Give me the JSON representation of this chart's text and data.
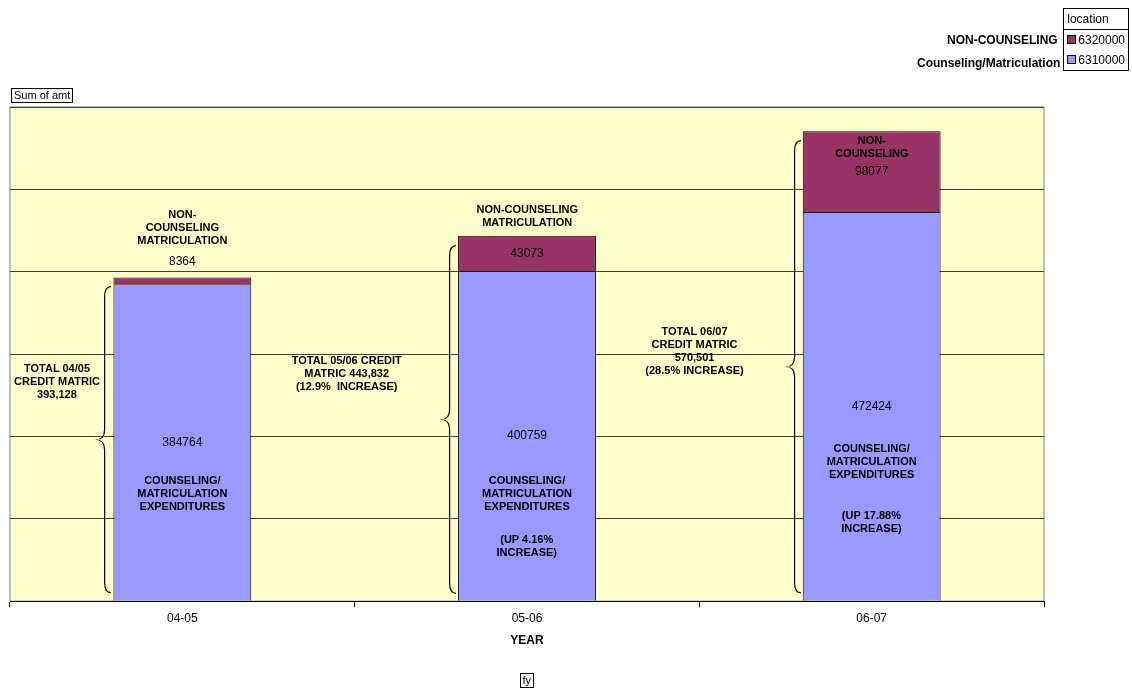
{
  "chart_data": {
    "type": "bar",
    "stacked": true,
    "xlabel": "YEAR",
    "legend_title": "location",
    "legend": "top right",
    "grid": "y",
    "tick_labels": "x",
    "data_labels": true,
    "categories": [
      "04-05",
      "05-06",
      "06-07"
    ],
    "series": [
      {
        "name": "6310000",
        "color": "#9999ff",
        "values": [
          384764,
          400759,
          472424
        ]
      },
      {
        "name": "6320000",
        "color": "#993366",
        "values": [
          8364,
          43073,
          98077
        ]
      }
    ],
    "ylim": [
      0,
      600000
    ],
    "yticks": [
      {
        "value": 0,
        "label": null
      },
      {
        "value": 100000,
        "label": null
      },
      {
        "value": 200000,
        "label": null
      },
      {
        "value": 300000,
        "label": null
      },
      {
        "value": 400000,
        "label": null
      },
      {
        "value": 500000,
        "label": null
      },
      {
        "value": 600000,
        "label": null
      }
    ],
    "annotations": [
      "Sum of amt",
      "fy",
      "NON-COUNSELING",
      "Counseling/Matriculation",
      "TOTAL 04/05\nCREDIT MATRIC\n393,128",
      "TOTAL 05/06 CREDIT\nMATRIC 443,832\n(12.9%  INCREASE)",
      "TOTAL 06/07\nCREDIT MATRIC\n570,501\n(28.5% INCREASE)",
      "NON-\nCOUNSELING\nMATRICULATION",
      "COUNSELING/\nMATRICULATION\nEXPENDITURES",
      "NON-COUNSELING\nMATRICULATION",
      "COUNSELING/\nMATRICULATION\nEXPENDITURES",
      "(UP 4.16%\nINCREASE)",
      "NON-\nCOUNSELING",
      "COUNSELING/\nMATRICULATION\nEXPENDITURES",
      "(UP 17.88%\nINCREASE)"
    ]
  }
}
